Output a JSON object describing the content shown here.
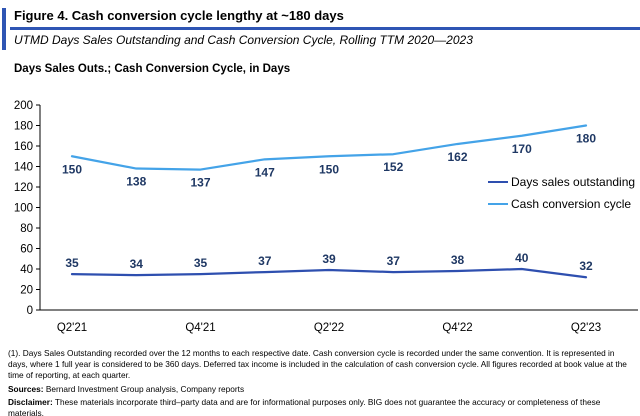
{
  "header": {
    "title": "Figure 4. Cash conversion cycle lengthy at ~180 days",
    "subtitle": "UTMD Days Sales Outstanding and Cash Conversion Cycle, Rolling TTM 2020—2023",
    "axis_note": "Days Sales Outs.; Cash Conversion Cycle, in Days"
  },
  "colors": {
    "accent_blue": "#2E55B4",
    "dso_line": "#2E4FAF",
    "ccc_line": "#44A3E8",
    "data_label_navy": "#1F3864",
    "axis_black": "#000000"
  },
  "chart_data": {
    "type": "line",
    "points_count": 9,
    "x_ticks": [
      {
        "i": 0,
        "label": "Q2'21"
      },
      {
        "i": 2,
        "label": "Q4'21"
      },
      {
        "i": 4,
        "label": "Q2'22"
      },
      {
        "i": 6,
        "label": "Q4'22"
      },
      {
        "i": 8,
        "label": "Q2'23"
      }
    ],
    "series": [
      {
        "name": "Days sales outstanding",
        "color": "#2E4FAF",
        "values": [
          35,
          34,
          35,
          37,
          39,
          37,
          38,
          40,
          32
        ],
        "label_position": "above"
      },
      {
        "name": "Cash conversion cycle",
        "color": "#44A3E8",
        "values": [
          150,
          138,
          137,
          147,
          150,
          152,
          162,
          170,
          180
        ],
        "label_position": "below"
      }
    ],
    "title": "Figure 4. Cash conversion cycle lengthy at ~180 days",
    "xlabel": "",
    "ylabel": "Days Sales Outs.; Cash Conversion Cycle, in Days",
    "ylim": [
      0,
      200
    ],
    "y_tick_step": 20,
    "grid": false,
    "legend_position": "right-middle",
    "data_label_color": "#1F3864"
  },
  "footer": {
    "footnote": "(1). Days Sales Outstanding recorded over the 12 months to each respective date. Cash conversion cycle is recorded under the same convention. It is represented in days, where 1 full year is considered to be 360 days. Deferred tax income is included in the calculation of cash conversion cycle. All figures recorded at book value at the time of reporting, at each quarter.",
    "sources_label": "Sources:",
    "sources": " Bernard Investment Group analysis, Company reports",
    "disclaimer_label": "Disclaimer:",
    "disclaimer": " These materials incorporate third–party data and are for informational purposes only. BIG does not guarantee the accuracy or completeness of these materials."
  }
}
